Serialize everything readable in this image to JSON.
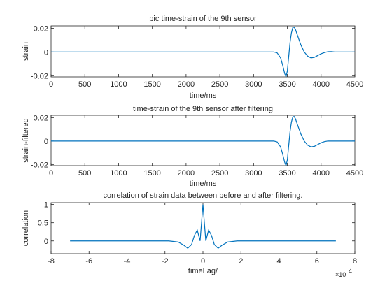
{
  "chart_data": [
    {
      "type": "line",
      "title": "pic time-strain of the 9th sensor",
      "xlabel": "time/ms",
      "ylabel": "strain",
      "xlim": [
        0,
        4500
      ],
      "ylim": [
        -0.021,
        0.022
      ],
      "xticks": [
        0,
        500,
        1000,
        1500,
        2000,
        2500,
        3000,
        3500,
        4000,
        4500
      ],
      "xtick_labels": [
        "0",
        "500",
        "1000",
        "1500",
        "2000",
        "2500",
        "3000",
        "3500",
        "4000",
        "4500"
      ],
      "yticks": [
        -0.02,
        0,
        0.02
      ],
      "ytick_labels": [
        "-0.02",
        "0",
        "0.02"
      ],
      "color": "#0072bd",
      "series": [
        {
          "x": [
            0,
            3300,
            3350,
            3400,
            3430,
            3460,
            3480,
            3500,
            3520,
            3540,
            3560,
            3580,
            3600,
            3620,
            3650,
            3700,
            3750,
            3800,
            3850,
            3900,
            3950,
            4000,
            4050,
            4100,
            4150,
            4200,
            4500
          ],
          "y": [
            0,
            0,
            -0.0008,
            -0.005,
            -0.011,
            -0.018,
            -0.021,
            -0.016,
            -0.004,
            0.008,
            0.016,
            0.0205,
            0.021,
            0.019,
            0.014,
            0.006,
            0.0,
            -0.0035,
            -0.005,
            -0.0045,
            -0.003,
            -0.0015,
            -0.0005,
            0.0002,
            0.0003,
            0.0,
            0
          ]
        }
      ]
    },
    {
      "type": "line",
      "title": "time-strain of the 9th sensor after filtering",
      "xlabel": "time/ms",
      "ylabel": "strain-filtered",
      "xlim": [
        0,
        4500
      ],
      "ylim": [
        -0.021,
        0.022
      ],
      "xticks": [
        0,
        500,
        1000,
        1500,
        2000,
        2500,
        3000,
        3500,
        4000,
        4500
      ],
      "xtick_labels": [
        "0",
        "500",
        "1000",
        "1500",
        "2000",
        "2500",
        "3000",
        "3500",
        "4000",
        "4500"
      ],
      "yticks": [
        -0.02,
        0,
        0.02
      ],
      "ytick_labels": [
        "-0.02",
        "0",
        "0.02"
      ],
      "color": "#0072bd",
      "series": [
        {
          "x": [
            0,
            3300,
            3350,
            3400,
            3430,
            3460,
            3480,
            3500,
            3520,
            3540,
            3560,
            3580,
            3600,
            3620,
            3650,
            3700,
            3750,
            3800,
            3850,
            3900,
            3950,
            4000,
            4050,
            4100,
            4150,
            4200,
            4500
          ],
          "y": [
            0,
            0,
            -0.0008,
            -0.005,
            -0.011,
            -0.018,
            -0.021,
            -0.016,
            -0.004,
            0.008,
            0.016,
            0.0205,
            0.021,
            0.019,
            0.014,
            0.006,
            0.0,
            -0.0035,
            -0.005,
            -0.0045,
            -0.003,
            -0.0015,
            -0.0005,
            0.0,
            0.0,
            0.0,
            0
          ]
        }
      ]
    },
    {
      "type": "line",
      "title": "correlation of strain data between before and after filtering.",
      "xlabel": "timeLag/",
      "ylabel": "correlation",
      "x_exponent_label": "×10",
      "x_exponent_power": "4",
      "xlim": [
        -8,
        8
      ],
      "ylim": [
        -0.35,
        1.05
      ],
      "xticks": [
        -8,
        -6,
        -4,
        -2,
        0,
        2,
        4,
        6,
        8
      ],
      "xtick_labels": [
        "-8",
        "-6",
        "-4",
        "-2",
        "0",
        "2",
        "4",
        "6",
        "8"
      ],
      "yticks": [
        0,
        0.5,
        1
      ],
      "ytick_labels": [
        "0",
        "0.5",
        "1"
      ],
      "color": "#0072bd",
      "series": [
        {
          "x": [
            -7,
            -1.8,
            -1.3,
            -1.0,
            -0.8,
            -0.6,
            -0.45,
            -0.3,
            -0.15,
            0,
            0.15,
            0.3,
            0.45,
            0.6,
            0.8,
            1.0,
            1.3,
            1.8,
            7
          ],
          "y": [
            0,
            0,
            -0.03,
            -0.12,
            -0.2,
            -0.1,
            0.15,
            0.3,
            0.0,
            1.0,
            0.0,
            0.3,
            0.15,
            -0.1,
            -0.2,
            -0.12,
            -0.03,
            0,
            0
          ]
        }
      ]
    }
  ]
}
